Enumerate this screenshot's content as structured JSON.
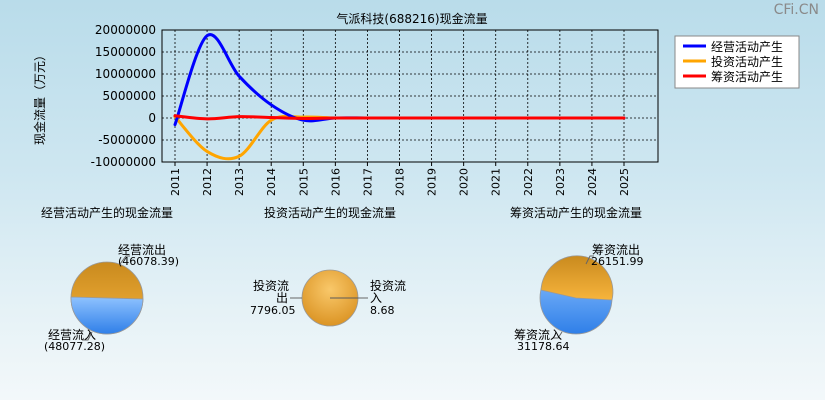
{
  "watermark": "CFi.CN",
  "colors": {
    "operating": "#0000ff",
    "investing": "#ffa500",
    "financing": "#ff0000"
  },
  "chart_data": [
    {
      "type": "line",
      "title": "气派科技(688216)现金流量",
      "ylabel": "现金流量（万元）",
      "xlabel": "",
      "x": [
        "2011",
        "2012",
        "2013",
        "2014",
        "2015",
        "2016",
        "2017",
        "2018",
        "2019",
        "2020",
        "2021",
        "2022",
        "2023",
        "2024",
        "2025"
      ],
      "ylim": [
        -10000000,
        20000000
      ],
      "yticks": [
        20000000,
        15000000,
        10000000,
        5000000,
        0,
        -5000000,
        -10000000
      ],
      "grid": true,
      "legend_position": "top-right",
      "series": [
        {
          "name": "经营活动产生",
          "values": [
            -1500000,
            18700000,
            9500000,
            3000000,
            -500000,
            0,
            0,
            0,
            0,
            0,
            0,
            0,
            0,
            0,
            0
          ]
        },
        {
          "name": "投资活动产生",
          "values": [
            300000,
            -7600000,
            -8700000,
            -500000,
            200000,
            0,
            0,
            0,
            0,
            0,
            0,
            0,
            0,
            0,
            0
          ]
        },
        {
          "name": "筹资活动产生",
          "values": [
            500000,
            -200000,
            300000,
            100000,
            -100000,
            0,
            0,
            0,
            0,
            0,
            0,
            0,
            0,
            0,
            0
          ]
        }
      ]
    },
    {
      "type": "pie",
      "title": "经营活动产生的现金流量",
      "slices": [
        {
          "label": "经营流出",
          "value": 46078.39,
          "display": "(46078.39)"
        },
        {
          "label": "经营流入",
          "value": 48077.28,
          "display": "(48077.28)"
        }
      ]
    },
    {
      "type": "pie",
      "title": "投资活动产生的现金流量",
      "slices": [
        {
          "label": "投资流出",
          "value": 7796.05,
          "display": "7796.05"
        },
        {
          "label": "投资流入",
          "value": 8.68,
          "display": "8.68"
        }
      ]
    },
    {
      "type": "pie",
      "title": "筹资活动产生的现金流量",
      "slices": [
        {
          "label": "筹资流出",
          "value": 26151.99,
          "display": "26151.99"
        },
        {
          "label": "筹资流入",
          "value": 31178.64,
          "display": "31178.64"
        }
      ]
    }
  ]
}
